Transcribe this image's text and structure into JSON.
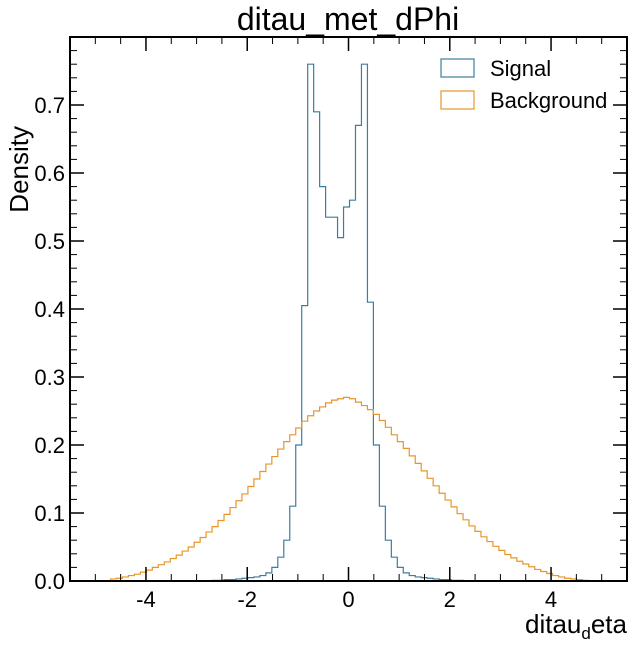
{
  "chart_data": {
    "type": "histogram",
    "title": "ditau_met_dPhi",
    "xlabel_main": "ditau",
    "xlabel_sub": "d",
    "xlabel_tail": "eta",
    "ylabel": "Density",
    "xlim": [
      -5.5,
      5.5
    ],
    "ylim": [
      0,
      0.8
    ],
    "xticks": [
      -4,
      -2,
      0,
      2,
      4
    ],
    "xtick_labels": [
      "-4",
      "-2",
      "0",
      "2",
      "4"
    ],
    "yticks": [
      0.0,
      0.1,
      0.2,
      0.3,
      0.4,
      0.5,
      0.6,
      0.7
    ],
    "ytick_labels": [
      "0.0",
      "0.1",
      "0.2",
      "0.3",
      "0.4",
      "0.5",
      "0.6",
      "0.7"
    ],
    "legend_position": "top-right",
    "bin_edges_start": -4.7,
    "bin_width": 0.118,
    "series": [
      {
        "name": "Signal",
        "color": "#3b7ea1",
        "values": [
          0,
          0,
          0,
          0,
          0,
          0,
          0,
          0,
          0,
          0,
          0,
          0,
          0,
          0,
          0,
          0,
          0,
          0.001,
          0.001,
          0.002,
          0.002,
          0.003,
          0.004,
          0.005,
          0.006,
          0.008,
          0.012,
          0.02,
          0.035,
          0.06,
          0.11,
          0.2,
          0.405,
          0.76,
          0.69,
          0.58,
          0.535,
          0.535,
          0.505,
          0.55,
          0.56,
          0.67,
          0.76,
          0.41,
          0.2,
          0.11,
          0.06,
          0.035,
          0.02,
          0.012,
          0.008,
          0.006,
          0.005,
          0.004,
          0.003,
          0.002,
          0.002,
          0.001,
          0.001,
          0,
          0,
          0,
          0,
          0,
          0,
          0,
          0,
          0,
          0,
          0,
          0,
          0,
          0,
          0,
          0,
          0,
          0,
          0,
          0,
          0
        ]
      },
      {
        "name": "Background",
        "color": "#e8962a",
        "values": [
          0.003,
          0.004,
          0.006,
          0.008,
          0.01,
          0.013,
          0.016,
          0.02,
          0.024,
          0.028,
          0.033,
          0.038,
          0.044,
          0.05,
          0.057,
          0.064,
          0.072,
          0.08,
          0.089,
          0.098,
          0.108,
          0.118,
          0.128,
          0.139,
          0.15,
          0.161,
          0.172,
          0.183,
          0.194,
          0.205,
          0.215,
          0.225,
          0.235,
          0.243,
          0.25,
          0.256,
          0.262,
          0.266,
          0.268,
          0.27,
          0.268,
          0.263,
          0.258,
          0.252,
          0.245,
          0.236,
          0.226,
          0.215,
          0.205,
          0.195,
          0.184,
          0.173,
          0.162,
          0.151,
          0.14,
          0.129,
          0.119,
          0.109,
          0.099,
          0.09,
          0.081,
          0.073,
          0.065,
          0.058,
          0.051,
          0.045,
          0.039,
          0.034,
          0.029,
          0.025,
          0.021,
          0.017,
          0.014,
          0.011,
          0.008,
          0.006,
          0.004,
          0.003,
          0.002,
          0.001
        ]
      }
    ]
  }
}
